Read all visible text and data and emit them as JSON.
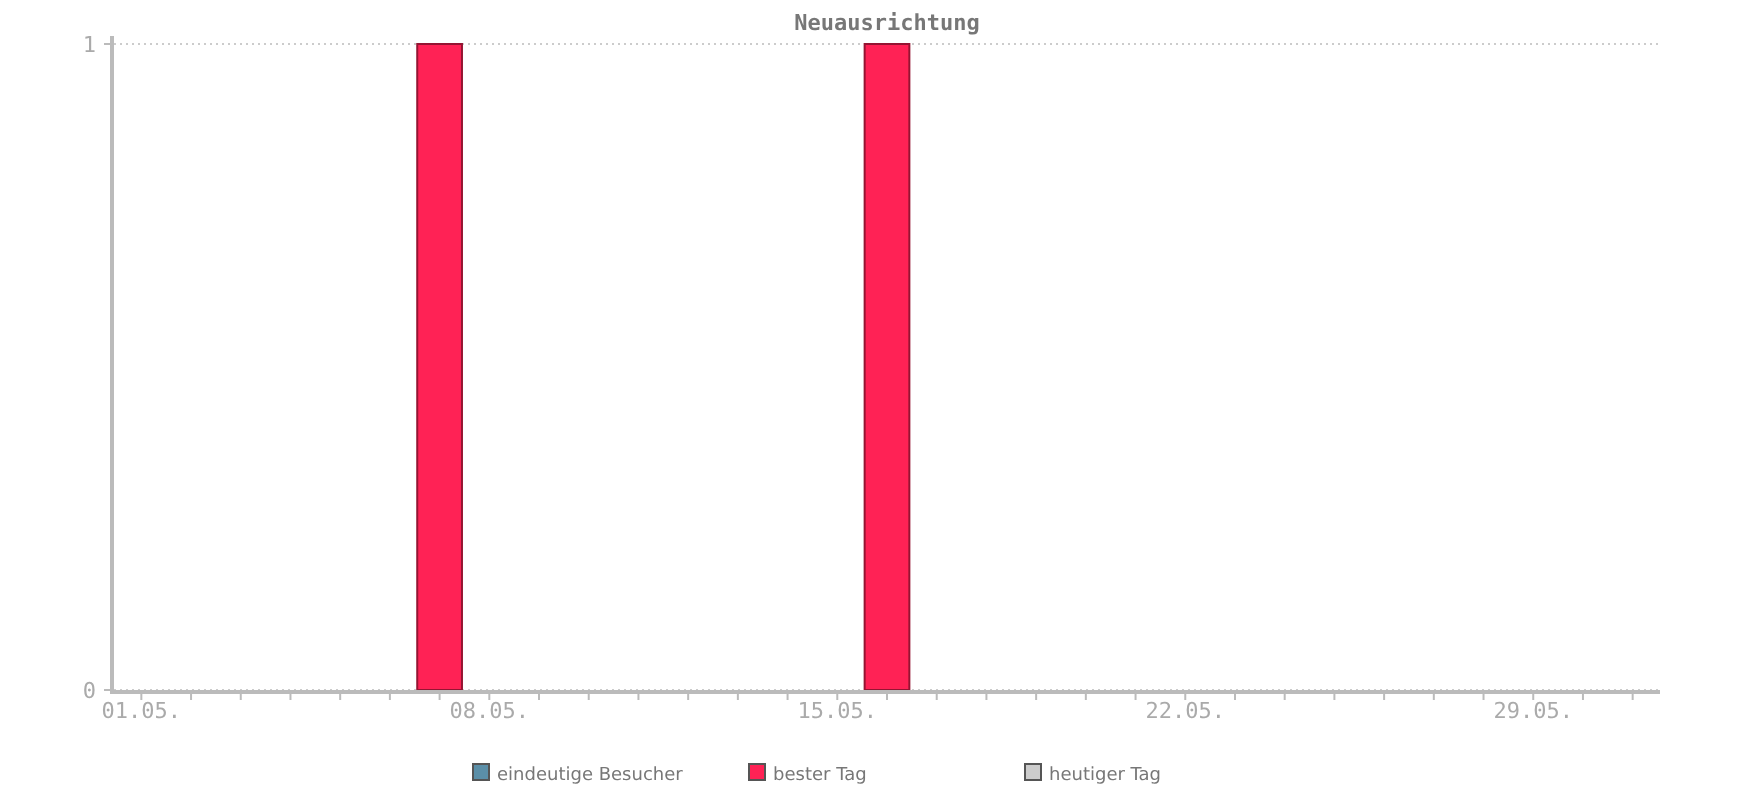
{
  "chart_data": {
    "type": "bar",
    "title": "Neuausrichtung",
    "categories": [
      "01.05.",
      null,
      null,
      null,
      null,
      null,
      null,
      "08.05.",
      null,
      null,
      null,
      null,
      null,
      null,
      "15.05.",
      null,
      null,
      null,
      null,
      null,
      null,
      "22.05.",
      null,
      null,
      null,
      null,
      null,
      null,
      "29.05.",
      null,
      null
    ],
    "series": [
      {
        "name": "eindeutige Besucher",
        "color": "#5b8fa8",
        "values": [
          0,
          0,
          0,
          0,
          0,
          0,
          0,
          0,
          0,
          0,
          0,
          0,
          0,
          0,
          0,
          0,
          0,
          0,
          0,
          0,
          0,
          0,
          0,
          0,
          0,
          0,
          0,
          0,
          0,
          0,
          0
        ]
      },
      {
        "name": "bester Tag",
        "color": "#ff2255",
        "values": [
          0,
          0,
          0,
          0,
          0,
          0,
          1,
          0,
          0,
          0,
          0,
          0,
          0,
          0,
          0,
          1,
          0,
          0,
          0,
          0,
          0,
          0,
          0,
          0,
          0,
          0,
          0,
          0,
          0,
          0,
          0
        ]
      },
      {
        "name": "heutiger Tag",
        "color": "#cccccc",
        "values": [
          0,
          0,
          0,
          0,
          0,
          0,
          0,
          0,
          0,
          0,
          0,
          0,
          0,
          0,
          0,
          0,
          0,
          0,
          0,
          0,
          0,
          0,
          0,
          0,
          0,
          0,
          0,
          0,
          0,
          0,
          0
        ]
      }
    ],
    "ylim": [
      0,
      1
    ],
    "yticks": [
      0,
      1
    ],
    "grid": "y",
    "legend": "bottom"
  }
}
